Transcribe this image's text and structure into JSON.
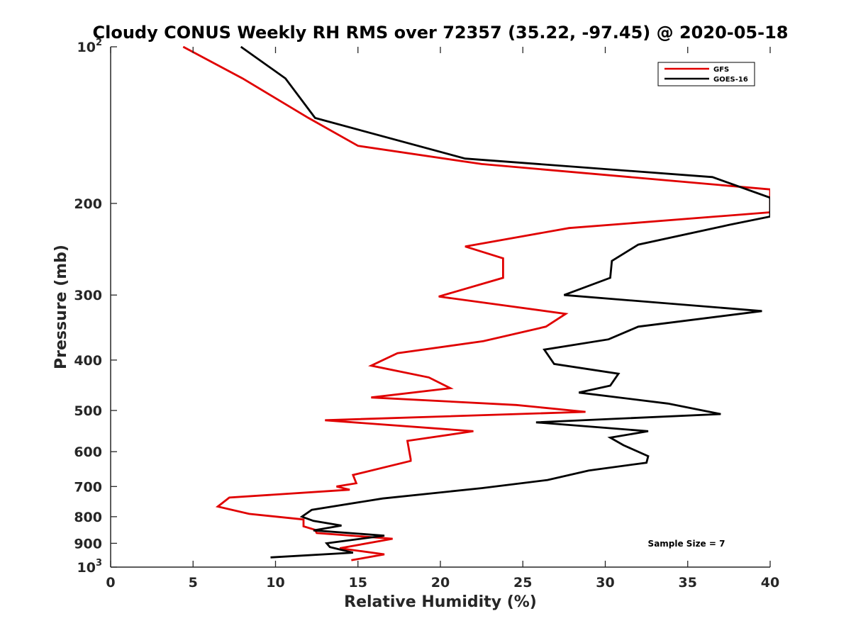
{
  "chart_data": {
    "type": "line",
    "title": "Cloudy CONUS Weekly RH RMS over 72357 (35.22, -97.45) @ 2020-05-18",
    "xlabel": "Relative Humidity (%)",
    "ylabel": "Pressure (mb)",
    "xlim": [
      0,
      40
    ],
    "ylim": [
      100,
      1000
    ],
    "y_scale": "log",
    "y_reversed": true,
    "grid": false,
    "legend_position": "top-right",
    "x_ticks": [
      "0",
      "5",
      "10",
      "15",
      "20",
      "25",
      "30",
      "35",
      "40"
    ],
    "y_ticks": [
      {
        "value": 100,
        "base": "10",
        "exp": "2"
      },
      {
        "value": 200,
        "base": "200",
        "exp": ""
      },
      {
        "value": 300,
        "base": "300",
        "exp": ""
      },
      {
        "value": 400,
        "base": "400",
        "exp": ""
      },
      {
        "value": 500,
        "base": "500",
        "exp": ""
      },
      {
        "value": 600,
        "base": "600",
        "exp": ""
      },
      {
        "value": 700,
        "base": "700",
        "exp": ""
      },
      {
        "value": 800,
        "base": "800",
        "exp": ""
      },
      {
        "value": 900,
        "base": "900",
        "exp": ""
      },
      {
        "value": 1000,
        "base": "10",
        "exp": "3"
      }
    ],
    "series": [
      {
        "name": "GFS",
        "color": "#e00000",
        "x": [
          4.4,
          8.0,
          12.0,
          15.0,
          22.5,
          40.0,
          40.0,
          27.8,
          21.5,
          23.8,
          23.8,
          19.9,
          27.6,
          26.4,
          22.6,
          17.4,
          15.8,
          19.3,
          20.6,
          15.8,
          24.6,
          28.8,
          13.0,
          22.0,
          18.0,
          18.1,
          18.2,
          18.2,
          14.7,
          14.9,
          13.7,
          14.5,
          7.2,
          6.5,
          8.4,
          11.7,
          11.7,
          12.4,
          12.5,
          17.1,
          13.9,
          16.6,
          14.6
        ],
        "y": [
          100,
          115,
          137,
          155,
          168,
          188,
          208,
          223,
          242,
          255,
          278,
          302,
          326,
          345,
          368,
          388,
          410,
          432,
          453,
          472,
          488,
          503,
          522,
          548,
          572,
          596,
          620,
          625,
          665,
          690,
          700,
          710,
          735,
          765,
          790,
          810,
          835,
          848,
          860,
          882,
          920,
          945,
          970
        ]
      },
      {
        "name": "GOES-16",
        "color": "#000000",
        "x": [
          7.9,
          10.6,
          12.4,
          21.5,
          36.5,
          40.0,
          40.0,
          37.5,
          32.0,
          30.4,
          30.3,
          27.5,
          39.5,
          32.0,
          30.2,
          26.3,
          26.9,
          30.8,
          30.3,
          28.4,
          33.8,
          37.0,
          25.8,
          32.6,
          30.3,
          31.1,
          32.6,
          32.5,
          29.0,
          26.5,
          22.5,
          16.5,
          12.2,
          11.6,
          12.3,
          14.0,
          12.3,
          16.6,
          13.1,
          13.3,
          14.7,
          9.7
        ],
        "y": [
          100,
          115,
          137,
          164,
          178,
          195,
          212,
          220,
          240,
          258,
          278,
          300,
          322,
          345,
          365,
          382,
          407,
          425,
          448,
          462,
          485,
          508,
          527,
          548,
          564,
          583,
          612,
          630,
          652,
          680,
          705,
          738,
          776,
          800,
          815,
          832,
          850,
          870,
          900,
          915,
          938,
          958
        ]
      }
    ],
    "annotation": "Sample Size = 7"
  }
}
